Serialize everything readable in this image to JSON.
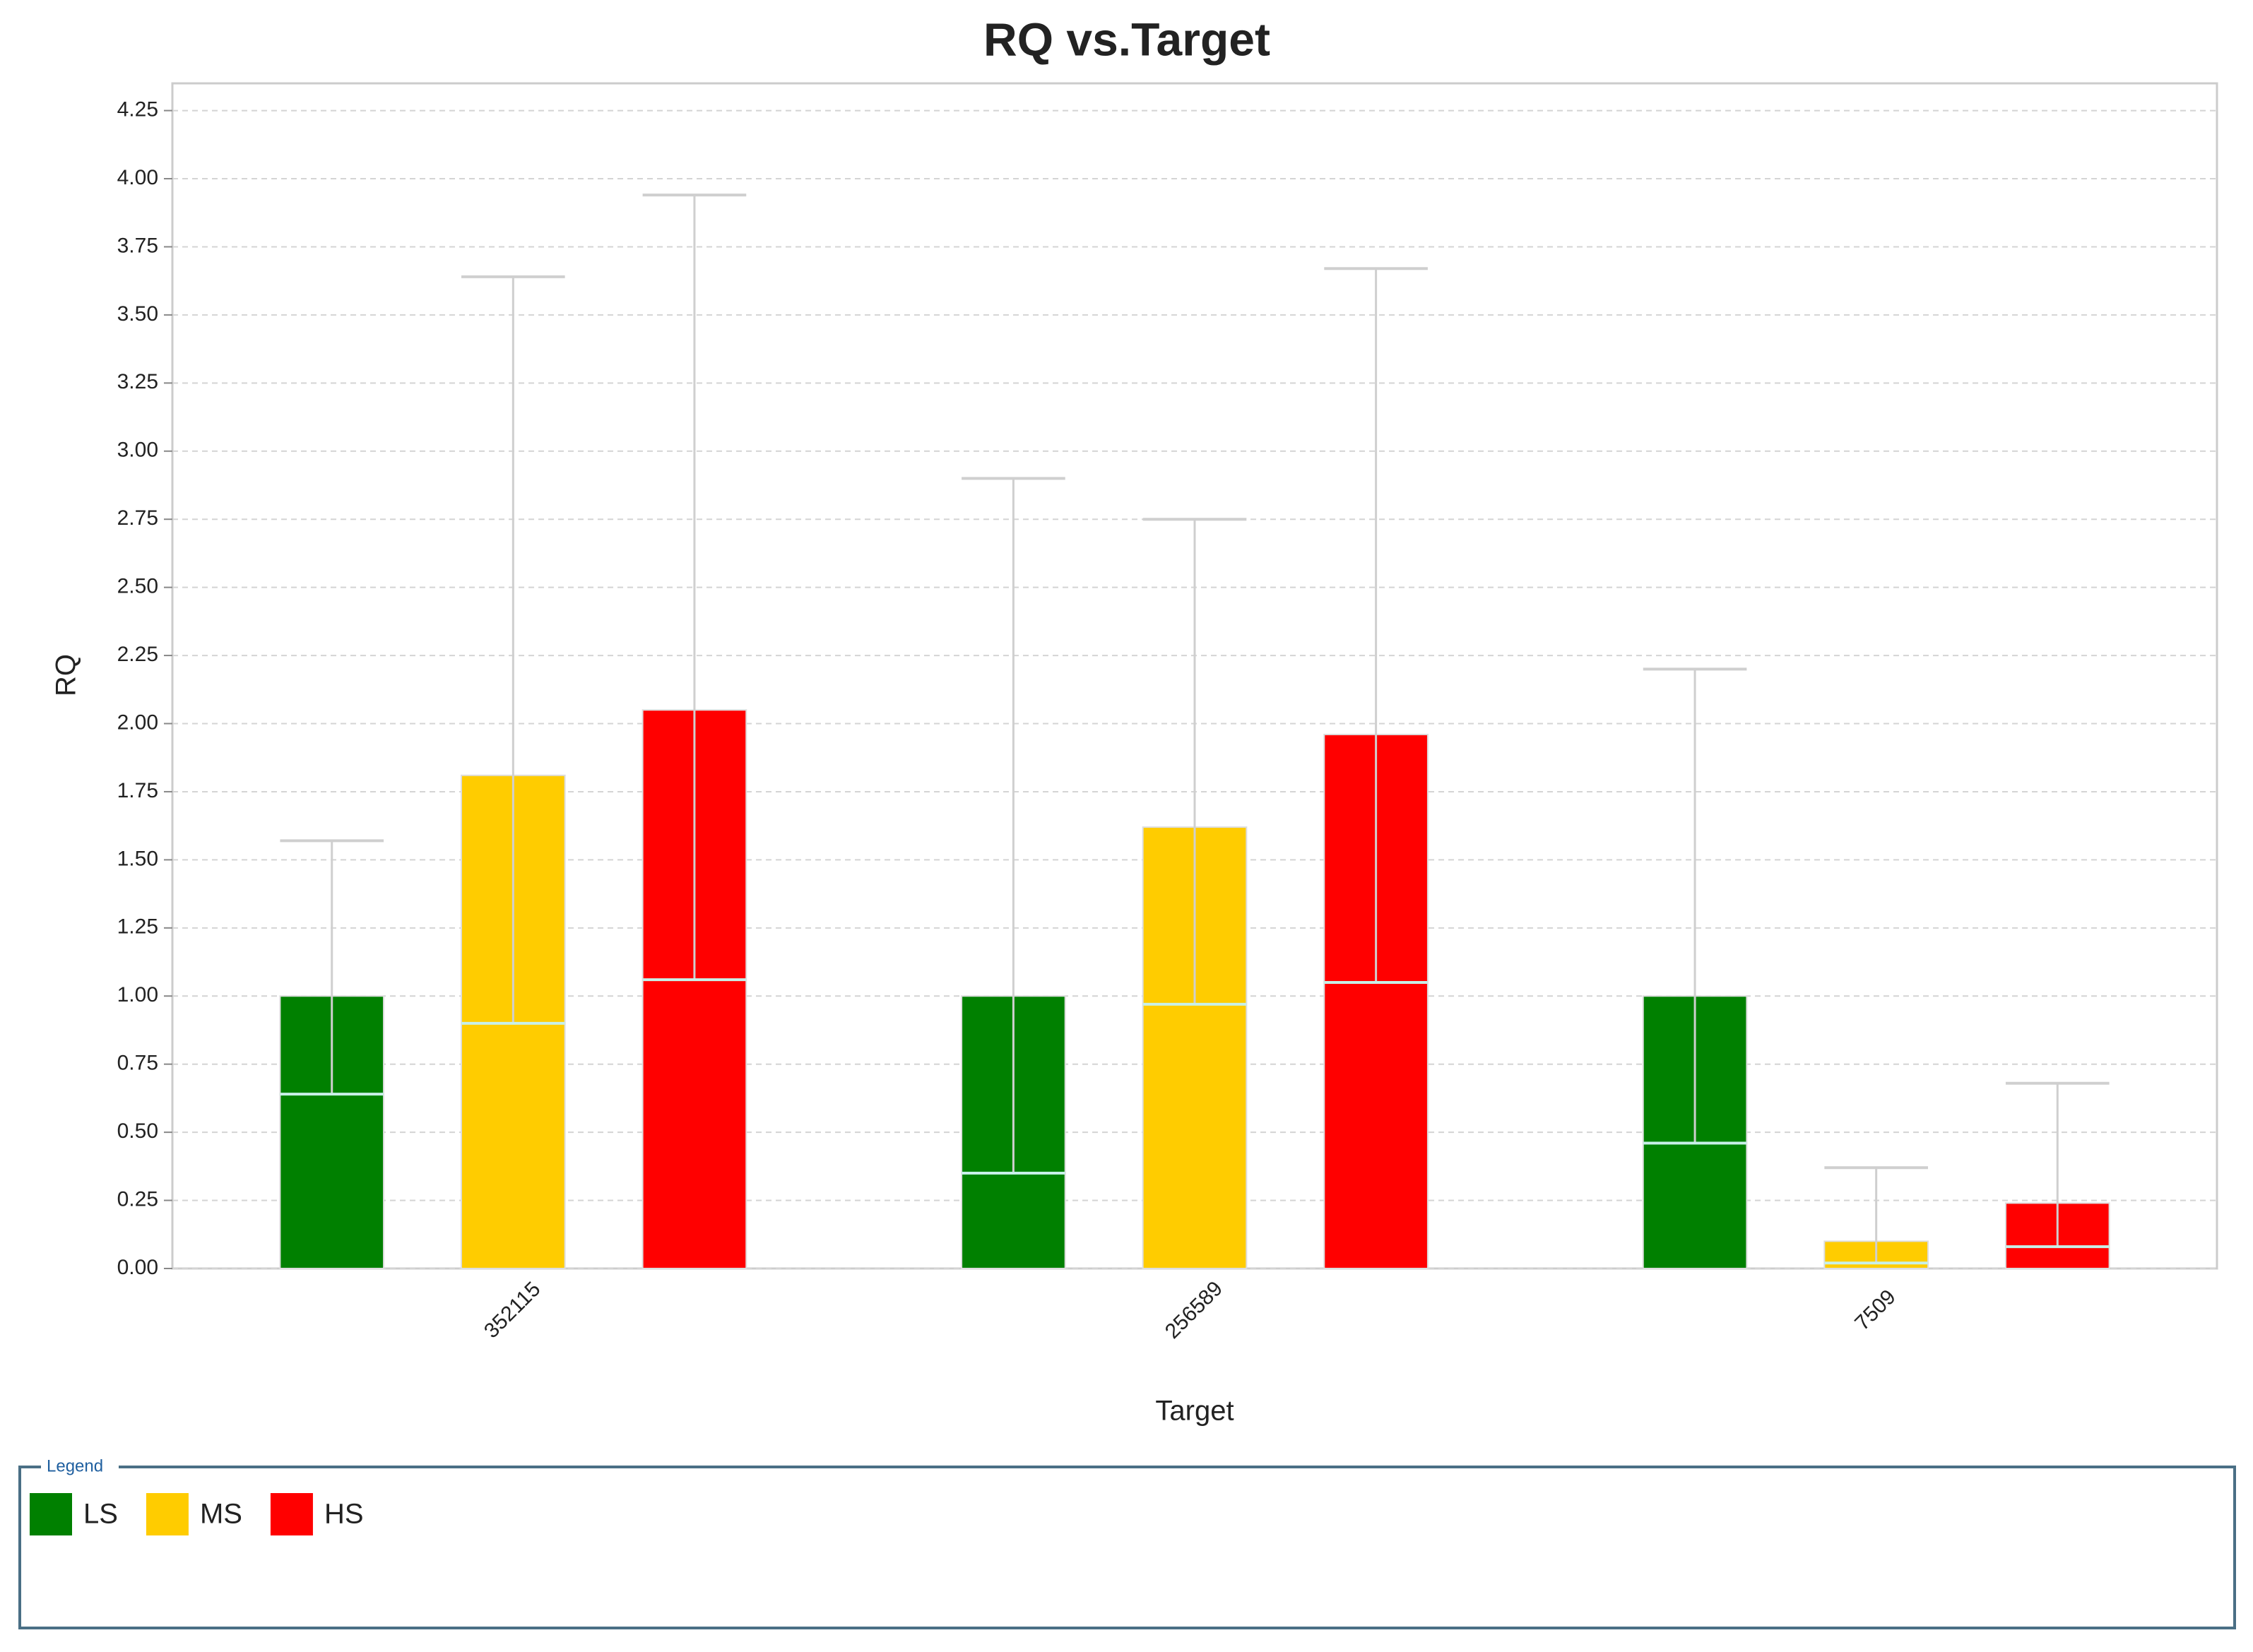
{
  "chart_data": {
    "type": "bar",
    "title": "RQ vs.Target",
    "x_label": "Target",
    "y_label": "RQ",
    "categories": [
      "352115",
      "256589",
      "7509"
    ],
    "series": [
      {
        "name": "LS",
        "color": "#008000",
        "values": [
          1.0,
          1.0,
          1.0
        ],
        "lower": [
          0.64,
          0.35,
          0.46
        ],
        "upper": [
          1.57,
          2.9,
          2.2
        ]
      },
      {
        "name": "MS",
        "color": "#ffcc00",
        "values": [
          1.81,
          1.62,
          0.1
        ],
        "lower": [
          0.9,
          0.97,
          0.02
        ],
        "upper": [
          3.64,
          2.75,
          0.37
        ]
      },
      {
        "name": "HS",
        "color": "#ff0000",
        "values": [
          2.05,
          1.96,
          0.24
        ],
        "lower": [
          1.06,
          1.05,
          0.08
        ],
        "upper": [
          3.94,
          3.67,
          0.68
        ]
      }
    ],
    "ylim": [
      0,
      4.35
    ],
    "yticks": [
      {
        "value": 0,
        "label": "0.00"
      },
      {
        "value": 0.25,
        "label": "0.25"
      },
      {
        "value": 0.5,
        "label": "0.50"
      },
      {
        "value": 0.75,
        "label": "0.75"
      },
      {
        "value": 1,
        "label": "1.00"
      },
      {
        "value": 1.25,
        "label": "1.25"
      },
      {
        "value": 1.5,
        "label": "1.50"
      },
      {
        "value": 1.75,
        "label": "1.75"
      },
      {
        "value": 2,
        "label": "2.00"
      },
      {
        "value": 2.25,
        "label": "2.25"
      },
      {
        "value": 2.5,
        "label": "2.50"
      },
      {
        "value": 2.75,
        "label": "2.75"
      },
      {
        "value": 3,
        "label": "3.00"
      },
      {
        "value": 3.25,
        "label": "3.25"
      },
      {
        "value": 3.5,
        "label": "3.50"
      },
      {
        "value": 3.75,
        "label": "3.75"
      },
      {
        "value": 4,
        "label": "4.00"
      },
      {
        "value": 4.25,
        "label": "4.25"
      }
    ],
    "grid": true,
    "legend_title": "Legend",
    "legend_position": "bottom"
  }
}
